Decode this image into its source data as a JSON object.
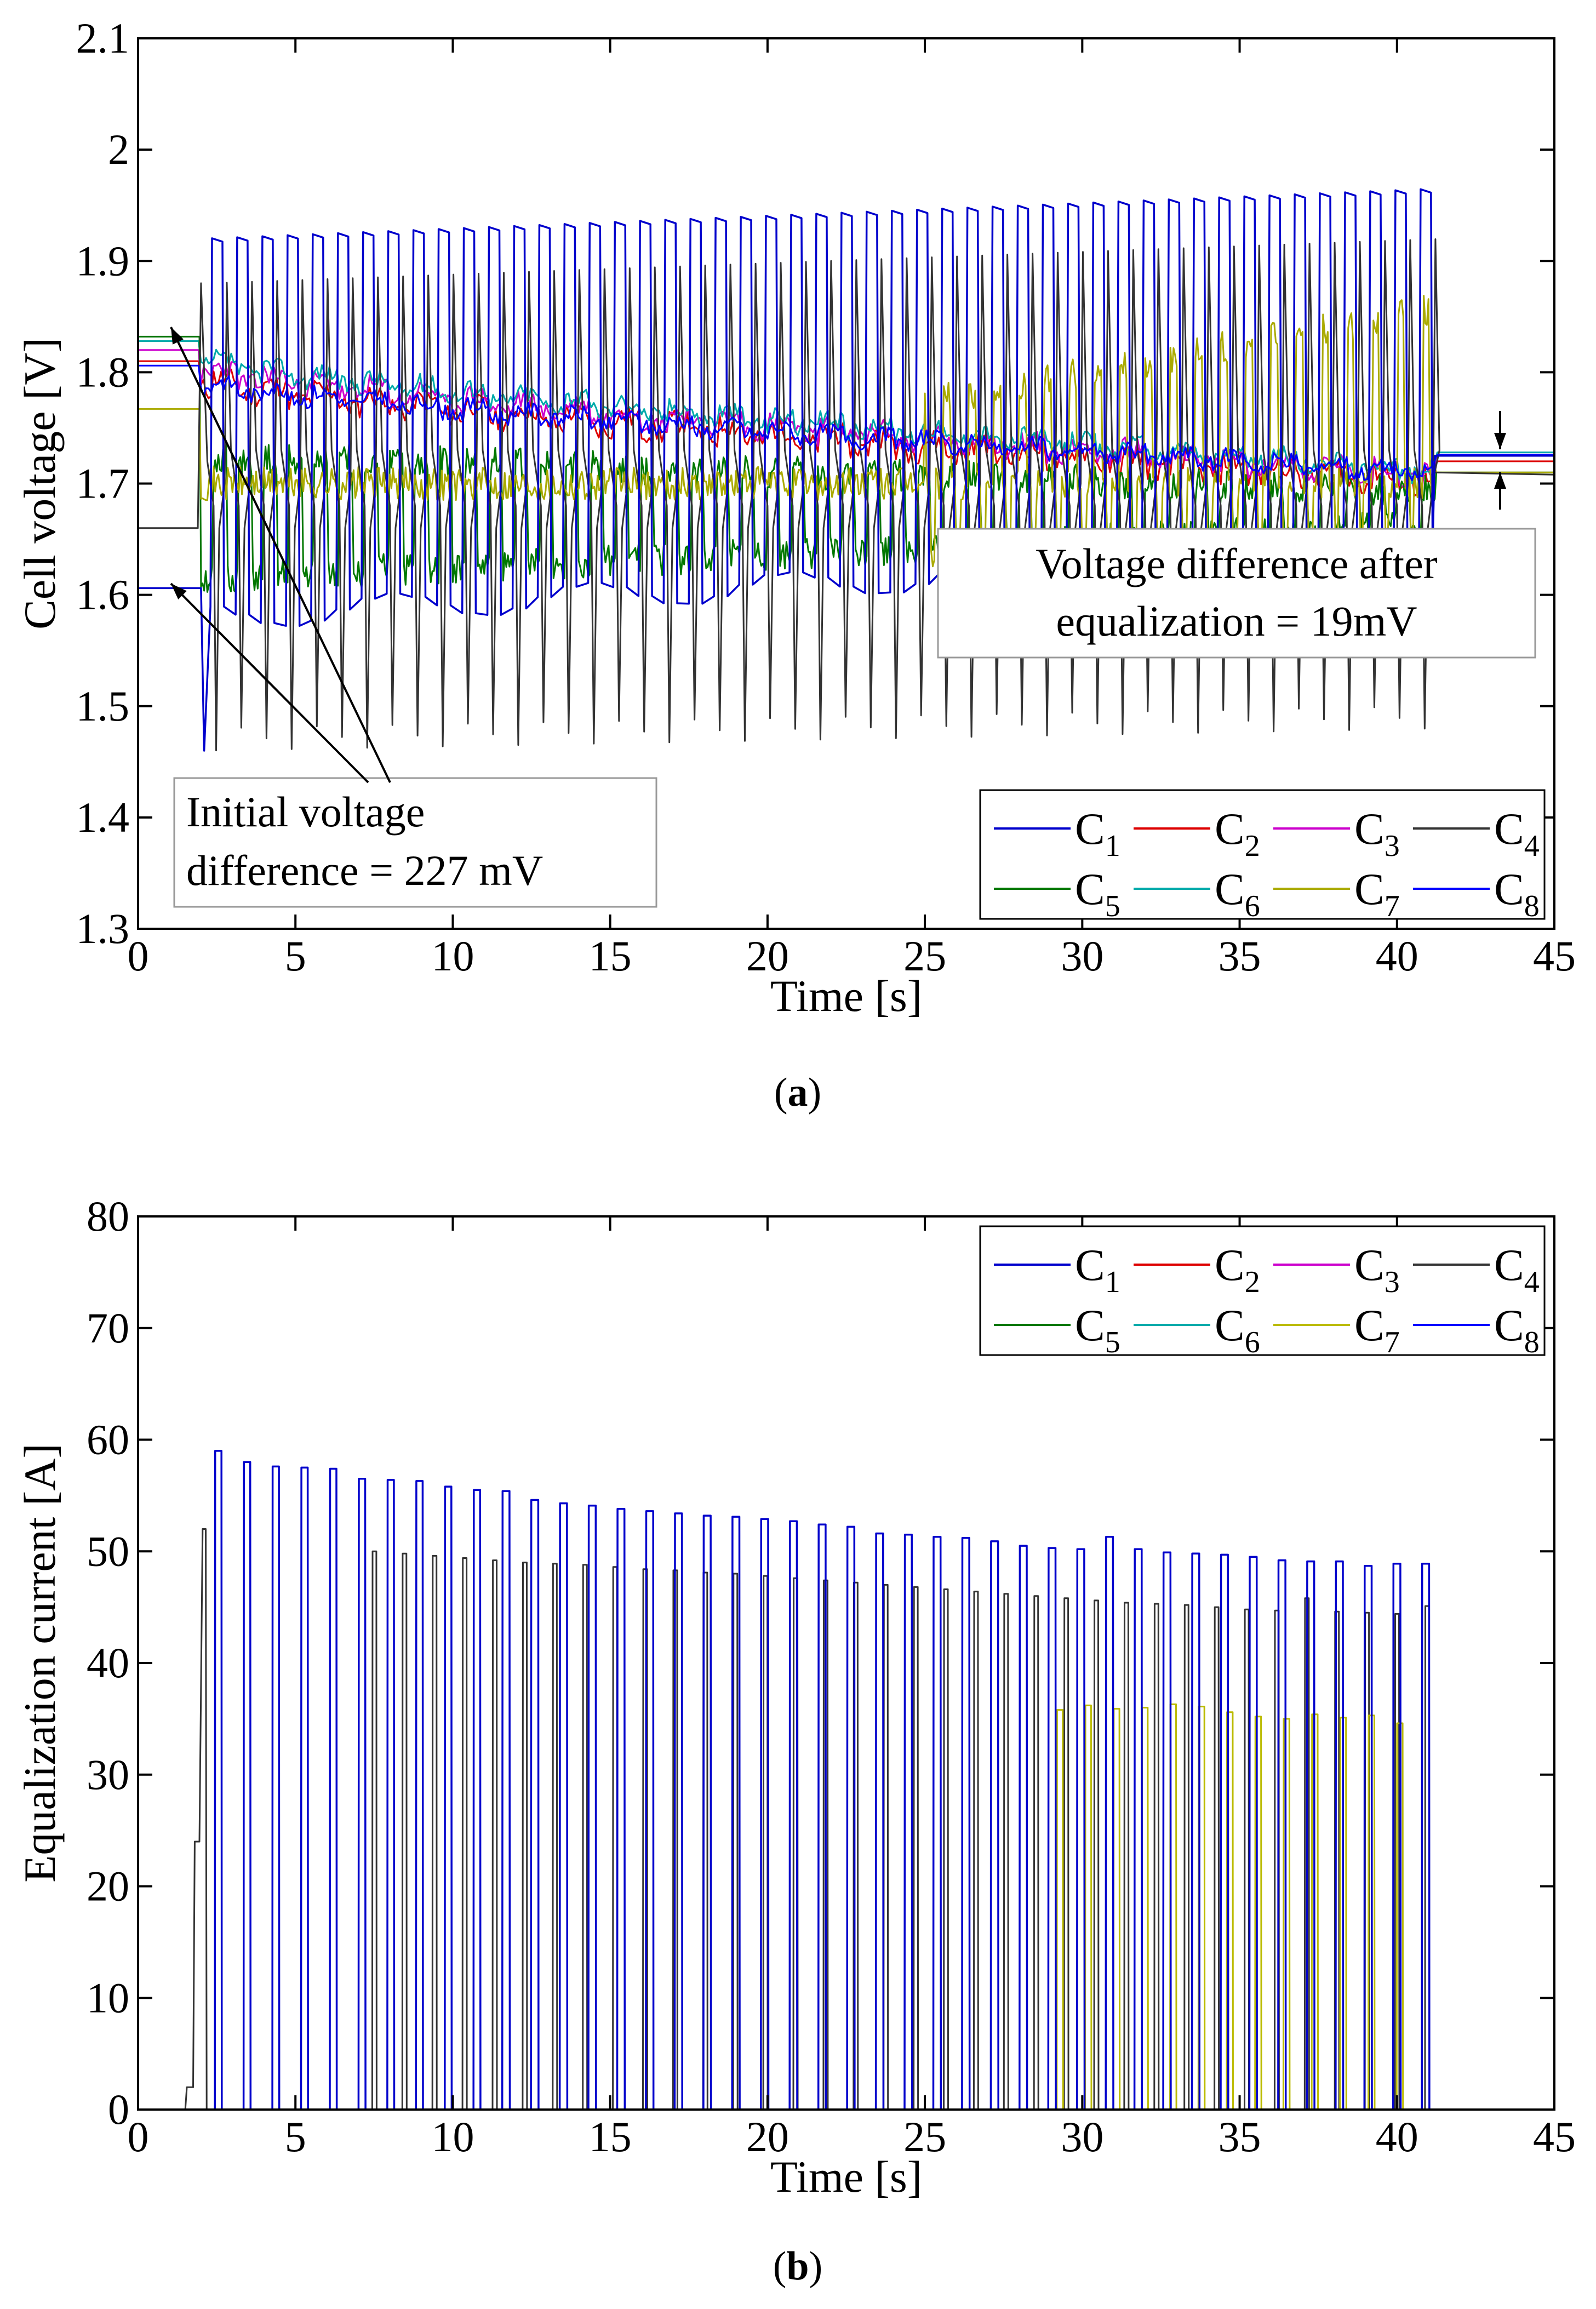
{
  "chart_data": [
    {
      "type": "line",
      "caption": "(a)",
      "caption_letter": "a",
      "xlabel": "Time [s]",
      "ylabel": "Cell voltage [V]",
      "xlim": [
        0,
        45
      ],
      "ylim": [
        1.3,
        2.1
      ],
      "xticks": [
        0,
        5,
        10,
        15,
        20,
        25,
        30,
        35,
        40,
        45
      ],
      "yticks": [
        1.3,
        1.4,
        1.5,
        1.6,
        1.7,
        1.8,
        1.9,
        2.0,
        2.1
      ],
      "ytick_labels": [
        "1.3",
        "1.4",
        "1.5",
        "1.6",
        "1.7",
        "1.8",
        "1.9",
        "2",
        "2.1"
      ],
      "legend_position": "bottom-right",
      "series": [
        {
          "name": "C1",
          "color": "#0000cc",
          "initial": 1.606,
          "final": 1.725,
          "description": "square pulses high ~1.92-1.96 V, low ~1.56-1.62 V, periods ~0.8s"
        },
        {
          "name": "C2",
          "color": "#dd0000",
          "initial": 1.81,
          "final": 1.72
        },
        {
          "name": "C3",
          "color": "#cc00cc",
          "initial": 1.82,
          "final": 1.725
        },
        {
          "name": "C4",
          "color": "#333333",
          "initial": 1.66,
          "final": 1.708,
          "description": "spikes high ~1.89-1.92 V, low ~1.43-1.50 V"
        },
        {
          "name": "C5",
          "color": "#007700",
          "initial": 1.832,
          "final": 1.71
        },
        {
          "name": "C6",
          "color": "#00aaaa",
          "initial": 1.828,
          "final": 1.728
        },
        {
          "name": "C7",
          "color": "#aaaa00",
          "initial": 1.767,
          "final": 1.71
        },
        {
          "name": "C8",
          "color": "#0000ff",
          "initial": 1.806,
          "final": 1.726
        }
      ],
      "annotations": [
        {
          "line1": "Initial voltage",
          "line2": "difference = 227 mV"
        },
        {
          "line1": "Voltage difference after",
          "line2": "equalization = 19mV"
        }
      ]
    },
    {
      "type": "line",
      "caption": "(b)",
      "caption_letter": "b",
      "xlabel": "Time [s]",
      "ylabel": "Equalization current [A]",
      "xlim": [
        0,
        45
      ],
      "ylim": [
        0,
        80
      ],
      "xticks": [
        0,
        5,
        10,
        15,
        20,
        25,
        30,
        35,
        40,
        45
      ],
      "yticks": [
        0,
        10,
        20,
        30,
        40,
        50,
        60,
        70,
        80
      ],
      "ytick_labels": [
        "0",
        "10",
        "20",
        "30",
        "40",
        "50",
        "60",
        "70",
        "80"
      ],
      "legend_position": "top-right",
      "series": [
        {
          "name": "C1",
          "color": "#0000cc",
          "pulse_peaks_A": [
            59,
            58,
            57.6,
            57.5,
            57.4,
            56.5,
            56.4,
            56.3,
            55.8,
            55.5,
            55.4,
            54.6,
            54.3,
            54.1,
            53.8,
            53.6,
            53.4,
            53.2,
            53.1,
            52.9,
            52.7,
            52.4,
            52.2,
            51.6,
            51.5,
            51.3,
            51.2,
            50.9,
            50.5,
            50.3,
            50.2,
            51.3,
            50.2,
            49.9,
            49.8,
            49.7,
            49.5,
            49.2,
            49.1,
            49.1,
            48.7,
            48.9,
            48.9
          ]
        },
        {
          "name": "C2",
          "color": "#dd0000"
        },
        {
          "name": "C3",
          "color": "#cc00cc"
        },
        {
          "name": "C4",
          "color": "#333333",
          "ramp": {
            "t_start": 1.6,
            "step_value": 24,
            "peak": 52
          },
          "pulse_peaks_A": [
            50,
            49.8,
            49.6,
            49.4,
            49.2,
            49,
            48.9,
            48.8,
            48.6,
            48.4,
            48.3,
            48.1,
            48,
            47.8,
            47.6,
            47.4,
            47.2,
            47,
            46.8,
            46.6,
            46.4,
            46.2,
            46,
            45.8,
            45.6,
            45.4,
            45.3,
            45.2,
            45,
            44.8,
            44.7,
            45.8,
            44.6,
            44.5,
            44.4,
            45.1
          ]
        },
        {
          "name": "C5",
          "color": "#007700"
        },
        {
          "name": "C6",
          "color": "#00aaaa"
        },
        {
          "name": "C7",
          "color": "#bbbb00",
          "pulse_peaks_A": [
            35.8,
            36.2,
            35.9,
            36,
            36.3,
            36.1,
            35.6,
            35.2,
            35,
            35.4,
            35.1,
            35.3,
            34.6
          ]
        },
        {
          "name": "C8",
          "color": "#0000ff"
        }
      ]
    }
  ]
}
